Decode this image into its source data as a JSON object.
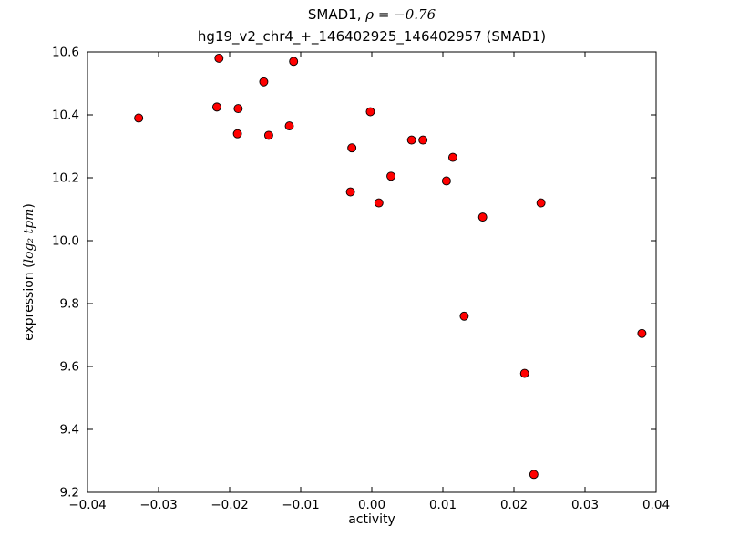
{
  "chart_data": {
    "type": "scatter",
    "title_prefix": "SMAD1, ",
    "title_rho": "ρ = −0.76",
    "subtitle": "hg19_v2_chr4_+_146402925_146402957 (SMAD1)",
    "xlabel": "activity",
    "ylabel_prefix": "expression (",
    "ylabel_math": "log₂ tpm",
    "ylabel_suffix": ")",
    "xlim": [
      -0.04,
      0.04
    ],
    "ylim": [
      9.2,
      10.6
    ],
    "x_ticks": [
      -0.04,
      -0.03,
      -0.02,
      -0.01,
      0.0,
      0.01,
      0.02,
      0.03,
      0.04
    ],
    "x_tick_labels": [
      "−0.04",
      "−0.03",
      "−0.02",
      "−0.01",
      "0.00",
      "0.01",
      "0.02",
      "0.03",
      "0.04"
    ],
    "y_ticks": [
      9.2,
      9.4,
      9.6,
      9.8,
      10.0,
      10.2,
      10.4,
      10.6
    ],
    "y_tick_labels": [
      "9.2",
      "9.4",
      "9.6",
      "9.8",
      "10.0",
      "10.2",
      "10.4",
      "10.6"
    ],
    "grid": false,
    "legend": "none",
    "marker": {
      "color": "#ff0000",
      "edge": "#000000",
      "radius": 4.5
    },
    "points": [
      {
        "x": -0.0328,
        "y": 10.39
      },
      {
        "x": -0.0218,
        "y": 10.425
      },
      {
        "x": -0.0215,
        "y": 10.58
      },
      {
        "x": -0.0188,
        "y": 10.42
      },
      {
        "x": -0.0189,
        "y": 10.34
      },
      {
        "x": -0.0152,
        "y": 10.505
      },
      {
        "x": -0.0145,
        "y": 10.335
      },
      {
        "x": -0.0116,
        "y": 10.365
      },
      {
        "x": -0.011,
        "y": 10.57
      },
      {
        "x": -0.0028,
        "y": 10.295
      },
      {
        "x": -0.003,
        "y": 10.155
      },
      {
        "x": -0.0002,
        "y": 10.41
      },
      {
        "x": 0.001,
        "y": 10.12
      },
      {
        "x": 0.0027,
        "y": 10.205
      },
      {
        "x": 0.0056,
        "y": 10.32
      },
      {
        "x": 0.0072,
        "y": 10.32
      },
      {
        "x": 0.0105,
        "y": 10.19
      },
      {
        "x": 0.0114,
        "y": 10.265
      },
      {
        "x": 0.013,
        "y": 9.76
      },
      {
        "x": 0.0156,
        "y": 10.075
      },
      {
        "x": 0.0215,
        "y": 9.578
      },
      {
        "x": 0.0228,
        "y": 9.257
      },
      {
        "x": 0.0238,
        "y": 10.12
      },
      {
        "x": 0.038,
        "y": 9.705
      }
    ]
  }
}
